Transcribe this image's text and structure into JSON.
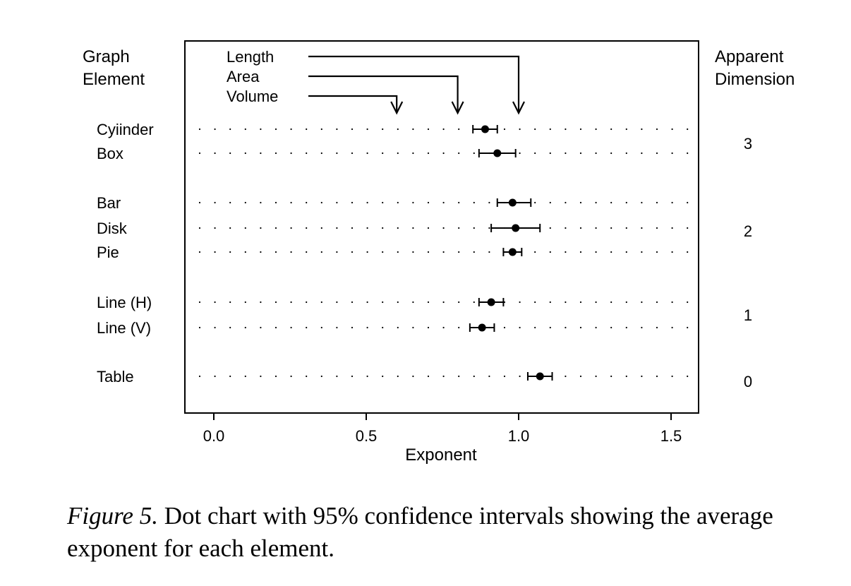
{
  "chart_data": {
    "type": "scatter",
    "xlabel": "Exponent",
    "xlim": [
      -0.1,
      1.6
    ],
    "xticks": [
      0.0,
      0.5,
      1.0,
      1.5
    ],
    "xtick_labels": [
      "0.0",
      "0.5",
      "1.0",
      "1.5"
    ],
    "left_header": [
      "Graph",
      "Element"
    ],
    "right_header": [
      "Apparent",
      "Dimension"
    ],
    "rows": [
      {
        "label": "Cyiinder",
        "estimate": 0.89,
        "ci": [
          0.85,
          0.93
        ]
      },
      {
        "label": "Box",
        "estimate": 0.93,
        "ci": [
          0.87,
          0.99
        ]
      },
      {
        "label": "Bar",
        "estimate": 0.98,
        "ci": [
          0.93,
          1.04
        ]
      },
      {
        "label": "Disk",
        "estimate": 0.99,
        "ci": [
          0.91,
          1.07
        ]
      },
      {
        "label": "Pie",
        "estimate": 0.98,
        "ci": [
          0.95,
          1.01
        ]
      },
      {
        "label": "Line (H)",
        "estimate": 0.91,
        "ci": [
          0.87,
          0.95
        ]
      },
      {
        "label": "Line (V)",
        "estimate": 0.88,
        "ci": [
          0.84,
          0.92
        ]
      },
      {
        "label": "Table",
        "estimate": 1.07,
        "ci": [
          1.03,
          1.11
        ]
      }
    ],
    "groups": [
      {
        "dimension": "3",
        "rows": [
          "Cyiinder",
          "Box"
        ]
      },
      {
        "dimension": "2",
        "rows": [
          "Bar",
          "Disk",
          "Pie"
        ]
      },
      {
        "dimension": "1",
        "rows": [
          "Line (H)",
          "Line (V)"
        ]
      },
      {
        "dimension": "0",
        "rows": [
          "Table"
        ]
      }
    ],
    "reference_arrows": [
      {
        "label": "Length",
        "value": 1.0
      },
      {
        "label": "Area",
        "value": 0.8
      },
      {
        "label": "Volume",
        "value": 0.6
      }
    ],
    "grid": "dotted"
  },
  "caption": {
    "lead": "Figure 5.",
    "text": "Dot chart with 95% confidence intervals showing the average exponent for each element."
  }
}
